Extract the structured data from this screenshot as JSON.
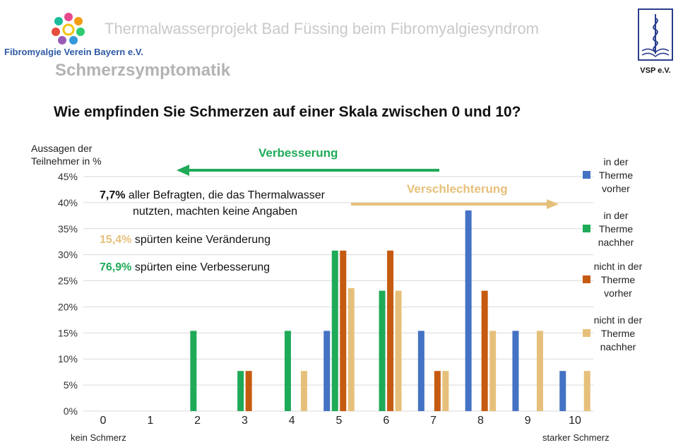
{
  "header": {
    "title": "Thermalwasserprojekt Bad Füssing beim Fibromyalgiesyndrom",
    "org_name": "Fibromyalgie Verein Bayern e.V.",
    "section_title": "Schmerzsymptomatik",
    "vsp_label": "VSP e.V."
  },
  "question": "Wie empfinden Sie Schmerzen auf einer Skala zwischen 0 und 10?",
  "annotations": {
    "improve_label": "Verbesserung",
    "worse_label": "Verschlechterung",
    "line1_pct": "7,7%",
    "line1_text": " aller Befragten, die das Thermalwasser",
    "line1b_text": "nutzten,  machten keine Angaben",
    "line2_pct": "15,4%",
    "line2_text": " spürten keine Veränderung",
    "line3_pct": "76,9%",
    "line3_text": " spürten eine Verbesserung"
  },
  "x_notes": {
    "left": "kein Schmerz",
    "right": "starker Schmerz"
  },
  "colors": {
    "therme_vorher": "#4472c4",
    "therme_nachher": "#1faa58",
    "nicht_vorher": "#c55a11",
    "nicht_nachher": "#e6c07a",
    "improve_arrow": "#1faa58",
    "worse_arrow": "#e6c07a",
    "grid": "#d9d9d9"
  },
  "legend": [
    {
      "line1": "in der",
      "line2": "Therme",
      "line3": "vorher"
    },
    {
      "line1": "in der",
      "line2": "Therme",
      "line3": "nachher"
    },
    {
      "line1": "nicht in der",
      "line2": "Therme",
      "line3": "vorher"
    },
    {
      "line1": "nicht in der",
      "line2": "Therme",
      "line3": "nachher"
    }
  ],
  "chart_data": {
    "type": "bar",
    "ylabel": "Aussagen der Teilnehmer  in %",
    "ylim": [
      0,
      45
    ],
    "yticks": [
      "0%",
      "5%",
      "10%",
      "15%",
      "20%",
      "25%",
      "30%",
      "35%",
      "40%",
      "45%"
    ],
    "categories": [
      "0",
      "1",
      "2",
      "3",
      "4",
      "5",
      "6",
      "7",
      "8",
      "9",
      "10"
    ],
    "grid": true,
    "legend_position": "right",
    "series": [
      {
        "name": "in der Therme vorher",
        "values": [
          0,
          0,
          0,
          0,
          0,
          15.4,
          0,
          15.4,
          38.5,
          15.4,
          7.7
        ]
      },
      {
        "name": "in der Therme nachher",
        "values": [
          0,
          0,
          15.4,
          7.7,
          15.4,
          30.8,
          23.1,
          0,
          0,
          0,
          0
        ]
      },
      {
        "name": "nicht in der Therme vorher",
        "values": [
          0,
          0,
          0,
          7.7,
          0,
          30.8,
          30.8,
          7.7,
          23.1,
          0,
          0
        ]
      },
      {
        "name": "nicht in der Therme nachher",
        "values": [
          0,
          0,
          0,
          0,
          7.7,
          23.6,
          23.1,
          7.7,
          15.4,
          15.4,
          7.7
        ]
      }
    ]
  }
}
